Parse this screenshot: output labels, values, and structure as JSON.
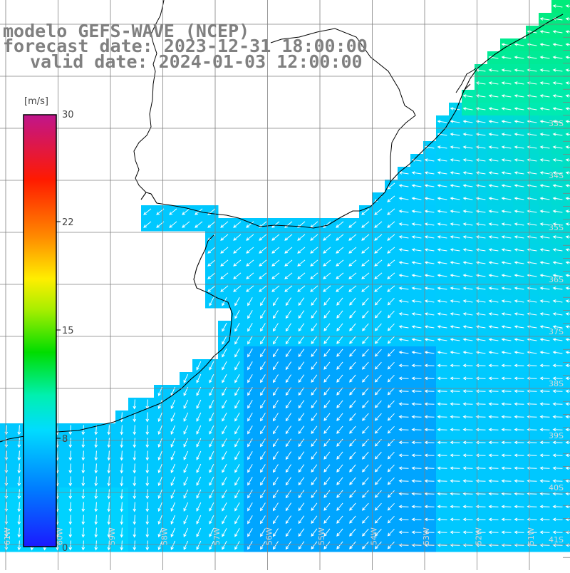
{
  "title": {
    "line1": "modelo GEFS-WAVE (NCEP)",
    "line2": "forecast date: 2023-12-31 18:00:00",
    "line3": "valid date: 2024-01-03 12:00:00"
  },
  "colorbar": {
    "unit": "[m/s]",
    "ticks": [
      "30",
      "22",
      "15",
      "8",
      "0"
    ]
  },
  "lat_labels": [
    "33S",
    "34S",
    "35S",
    "36S",
    "37S",
    "38S",
    "39S",
    "40S",
    "41S"
  ],
  "lon_labels": [
    "61W",
    "60W",
    "59W",
    "58W",
    "57W",
    "56W",
    "55W",
    "54W",
    "53W",
    "52W",
    "51W"
  ],
  "colors": {
    "land": "#ffffff",
    "grid": "#808080",
    "coast": "#000000",
    "arrow": "#ffffff",
    "title": "#808080"
  },
  "field": {
    "variable": "wind speed",
    "range_ms": [
      0,
      30
    ]
  }
}
